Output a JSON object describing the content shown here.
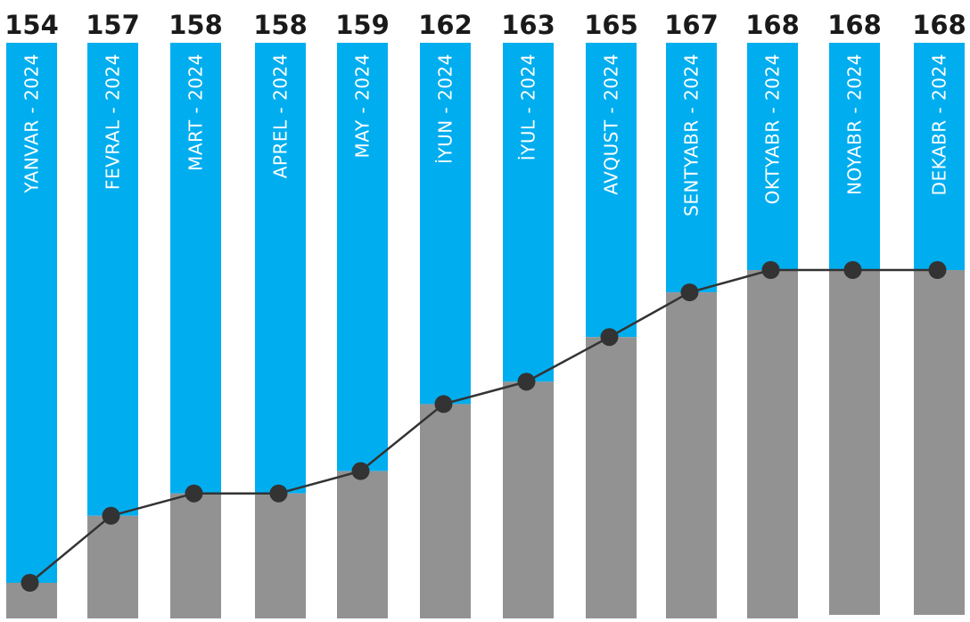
{
  "chart_data": {
    "type": "bar",
    "categories": [
      "YANVAR - 2024",
      "FEVRAL - 2024",
      "MART - 2024",
      "APREL - 2024",
      "MAY - 2024",
      "İYUN - 2024",
      "İYUL - 2024",
      "AVQUST - 2024",
      "SENTYABR - 2024",
      "OKTYABR - 2024",
      "NOYABR - 2024",
      "DEKABR - 2024"
    ],
    "values": [
      154,
      157,
      158,
      158,
      159,
      162,
      163,
      165,
      167,
      168,
      168,
      168
    ],
    "data_labels": [
      "154",
      "157",
      "158",
      "158",
      "159",
      "162",
      "163",
      "165",
      "167",
      "168",
      "168",
      "168"
    ],
    "colors": {
      "top": "#00AEEF",
      "fill": "#929292",
      "line": "#333333",
      "label": "#1a1a1a",
      "category_text": "#ffffff"
    },
    "legend": "none",
    "grid": false
  }
}
